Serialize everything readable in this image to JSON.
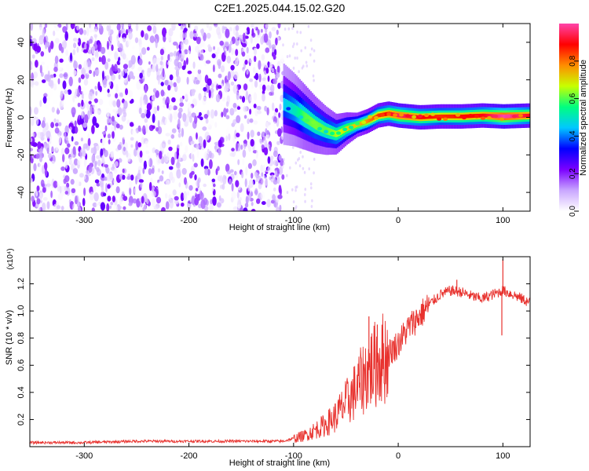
{
  "figure_title": "C2E1.2025.044.15.02.G20",
  "chart_data": [
    {
      "type": "heatmap",
      "title": "C2E1.2025.044.15.02.G20",
      "xlabel": "Height of straight line (km)",
      "ylabel": "Frequency (Hz)",
      "xlim": [
        -352,
        126
      ],
      "ylim": [
        -50,
        50
      ],
      "xticks": [
        -300,
        -200,
        -100,
        0,
        100
      ],
      "yticks": [
        -40,
        -20,
        0,
        20,
        40
      ],
      "colorbar": {
        "label": "Normalized spectral amplitude",
        "range": [
          0.0,
          1.0
        ],
        "ticks": [
          "0.0",
          "0.2",
          "0.4",
          "0.6",
          "0.8"
        ],
        "colors": [
          "#ffffff",
          "#c9a6ff",
          "#7b00ff",
          "#0000ff",
          "#00c8ff",
          "#00ff7f",
          "#c8ff00",
          "#ff8c00",
          "#ff0000",
          "#ff44aa"
        ]
      },
      "regions": [
        {
          "name": "noise",
          "x_range": [
            -352,
            -110
          ],
          "freq_range": [
            -50,
            50
          ],
          "amplitude_range": [
            0.0,
            0.25
          ]
        },
        {
          "name": "signal",
          "x_range": [
            -110,
            126
          ]
        }
      ],
      "signal_ridge": {
        "x": [
          -110,
          -100,
          -90,
          -80,
          -70,
          -60,
          -50,
          -40,
          -30,
          -20,
          -10,
          0,
          20,
          40,
          60,
          80,
          100,
          126
        ],
        "frequency": [
          7,
          4,
          0,
          -4,
          -7,
          -9,
          -6,
          -4,
          -2,
          1,
          2,
          1,
          0,
          0.5,
          0.5,
          1,
          0.5,
          1
        ],
        "amplitude": [
          0.45,
          0.5,
          0.6,
          0.62,
          0.6,
          0.65,
          0.7,
          0.72,
          0.78,
          0.85,
          0.9,
          0.95,
          0.9,
          0.85,
          0.88,
          0.9,
          1.0,
          0.9
        ]
      }
    },
    {
      "type": "line",
      "xlabel": "Height of straight line (km)",
      "ylabel": "SNR (10 * v/v)",
      "y_multiplier": "(x10⁴)",
      "xlim": [
        -352,
        126
      ],
      "ylim": [
        0,
        1.4
      ],
      "xticks": [
        -300,
        -200,
        -100,
        0,
        100
      ],
      "yticks": [
        "0.2",
        "0.4",
        "0.6",
        "0.8",
        "1.0",
        "1.2"
      ],
      "color": "#e8322e",
      "series": [
        {
          "x": [
            -352,
            -300,
            -250,
            -200,
            -150,
            -110,
            -100,
            -90,
            -80,
            -70,
            -60,
            -50,
            -40,
            -30,
            -20,
            -10,
            0,
            10,
            20,
            30,
            40,
            50,
            60,
            70,
            80,
            90,
            100,
            110,
            126
          ],
          "y": [
            0.03,
            0.03,
            0.04,
            0.04,
            0.04,
            0.04,
            0.06,
            0.08,
            0.12,
            0.16,
            0.22,
            0.32,
            0.42,
            0.55,
            0.62,
            0.68,
            0.76,
            0.88,
            0.96,
            1.05,
            1.12,
            1.15,
            1.14,
            1.11,
            1.09,
            1.12,
            1.15,
            1.12,
            1.06
          ]
        }
      ],
      "spikes": [
        {
          "x": 100,
          "y": 1.38
        },
        {
          "x": 99,
          "y": 0.82
        },
        {
          "x": 56,
          "y": 1.23
        },
        {
          "x": -28,
          "y": 0.96
        },
        {
          "x": -20,
          "y": 0.9
        }
      ]
    }
  ]
}
